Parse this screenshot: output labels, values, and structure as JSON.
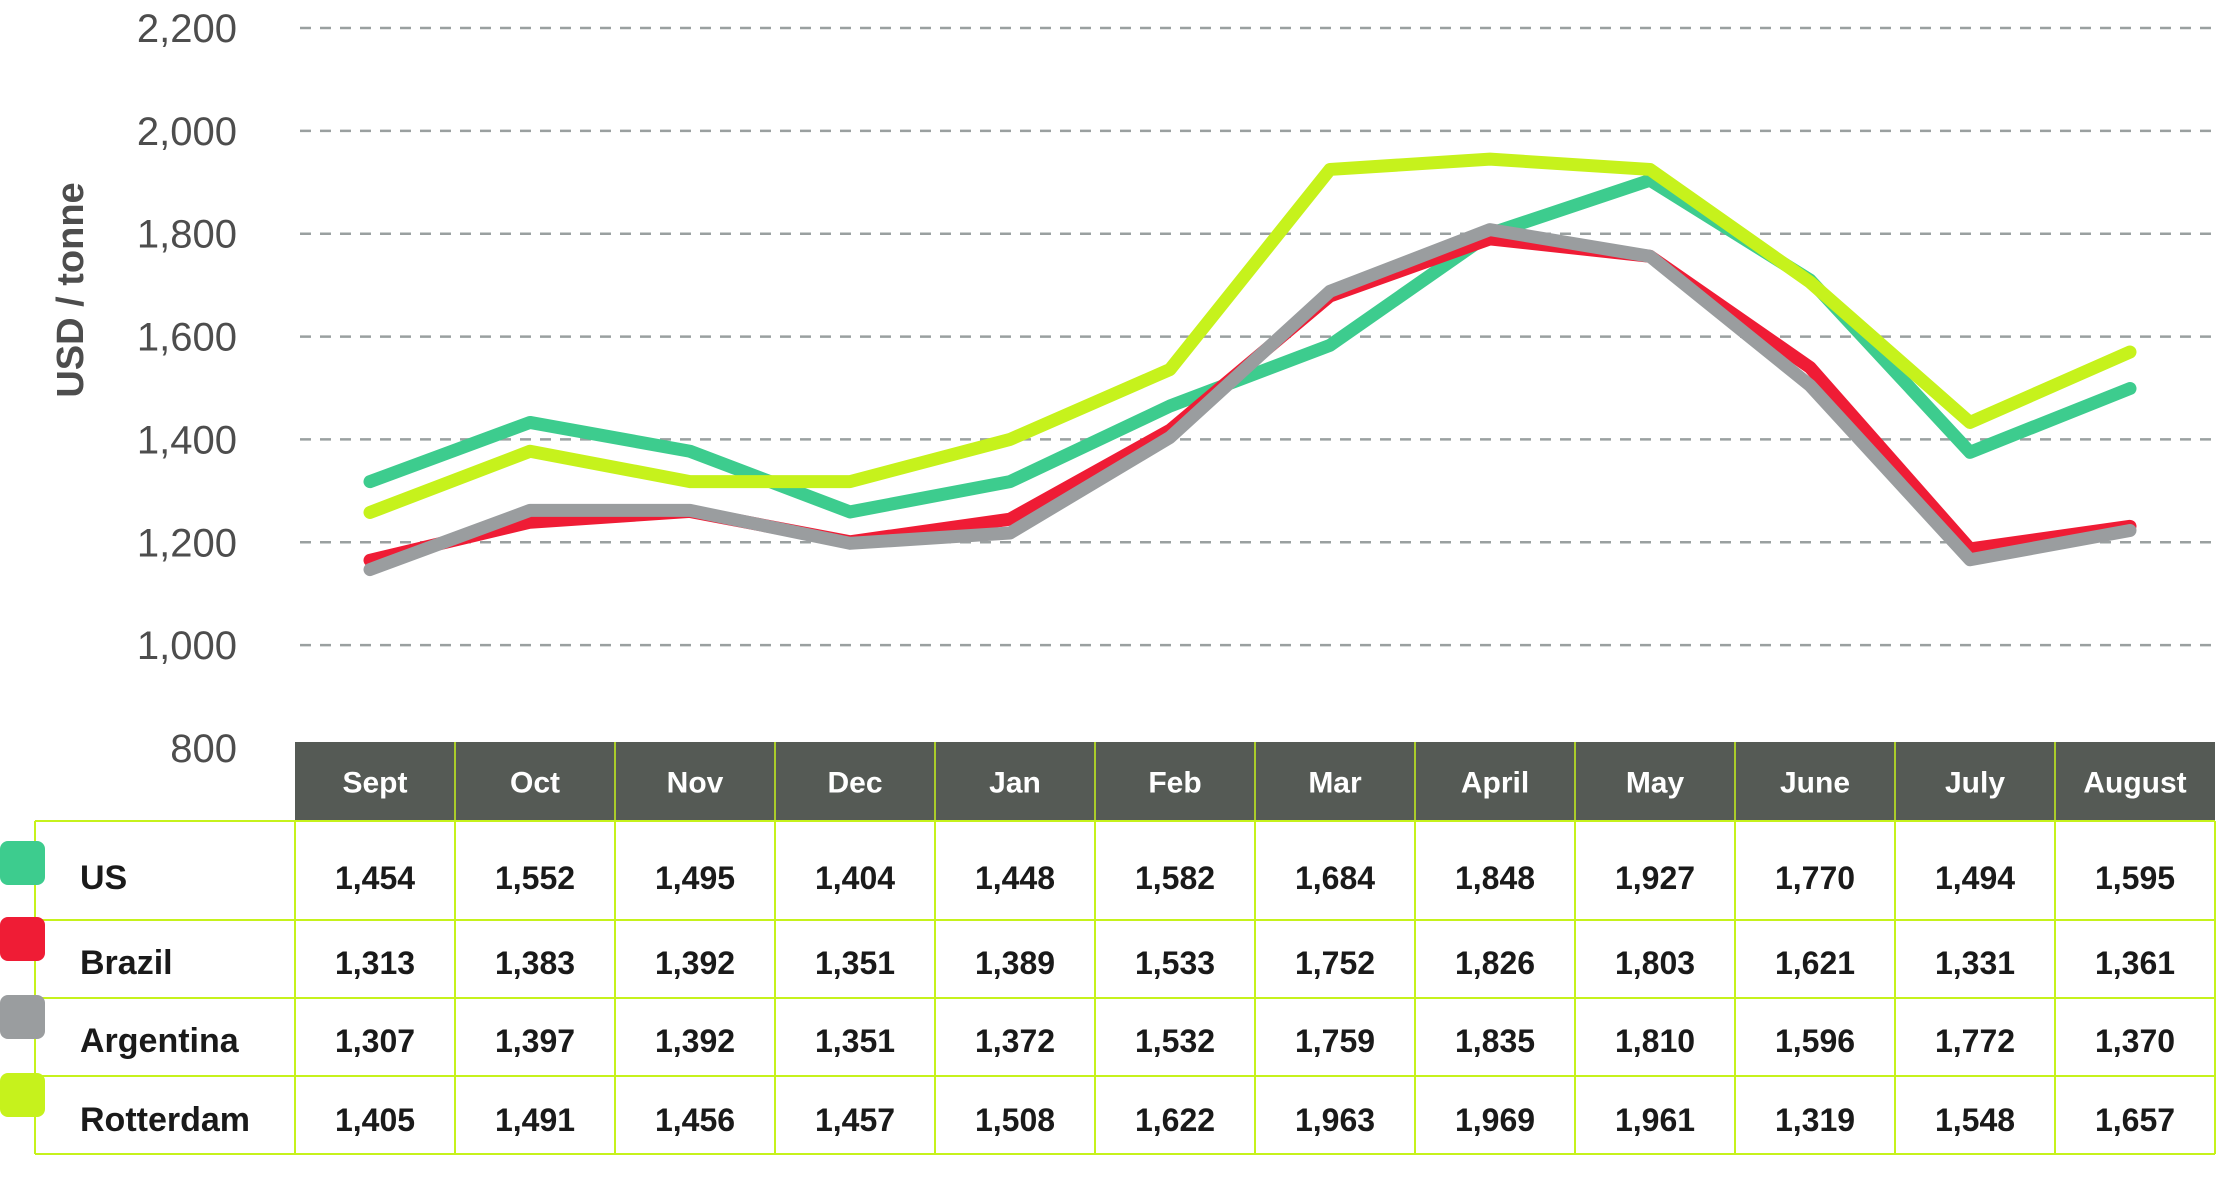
{
  "chart_data": {
    "type": "line",
    "ylabel": "USD / tonne",
    "ylim": [
      800,
      2200
    ],
    "yticks": [
      "800",
      "1,000",
      "1,200",
      "1,400",
      "1,600",
      "1,800",
      "2,000",
      "2,200"
    ],
    "categories": [
      "Sept",
      "Oct",
      "Nov",
      "Dec",
      "Jan",
      "Feb",
      "Mar",
      "April",
      "May",
      "June",
      "July",
      "August"
    ],
    "grid": "horizontal dashed",
    "legend": "table rows below chart",
    "series": [
      {
        "name": "US",
        "color": "#3dcc8e",
        "values": [
          1318,
          1433,
          1377,
          1259,
          1318,
          1465,
          1583,
          1800,
          1904,
          1710,
          1375,
          1499
        ],
        "table": [
          "1,454",
          "1,552",
          "1,495",
          "1,404",
          "1,448",
          "1,582",
          "1,684",
          "1,848",
          "1,927",
          "1,770",
          "1,494",
          "1,595"
        ]
      },
      {
        "name": "Brazil",
        "color": "#ef1c35",
        "values": [
          1165,
          1239,
          1260,
          1201,
          1245,
          1418,
          1679,
          1790,
          1756,
          1540,
          1187,
          1231
        ],
        "table": [
          "1,313",
          "1,383",
          "1,392",
          "1,351",
          "1,389",
          "1,533",
          "1,752",
          "1,826",
          "1,803",
          "1,621",
          "1,331",
          "1,361"
        ]
      },
      {
        "name": "Argentina",
        "color": "#9a9d9f",
        "values": [
          1147,
          1262,
          1262,
          1198,
          1218,
          1404,
          1688,
          1808,
          1756,
          1505,
          1166,
          1223
        ],
        "table": [
          "1,307",
          "1,397",
          "1,392",
          "1,351",
          "1,372",
          "1,532",
          "1,759",
          "1,835",
          "1,810",
          "1,596",
          "1,772",
          "1,370"
        ]
      },
      {
        "name": "Rotterdam",
        "color": "#c6f21c",
        "values": [
          1258,
          1377,
          1318,
          1318,
          1400,
          1536,
          1925,
          1945,
          1925,
          1706,
          1433,
          1570
        ],
        "table": [
          "1,405",
          "1,491",
          "1,456",
          "1,457",
          "1,508",
          "1,622",
          "1,963",
          "1,969",
          "1,961",
          "1,319",
          "1,548",
          "1,657"
        ]
      }
    ]
  }
}
